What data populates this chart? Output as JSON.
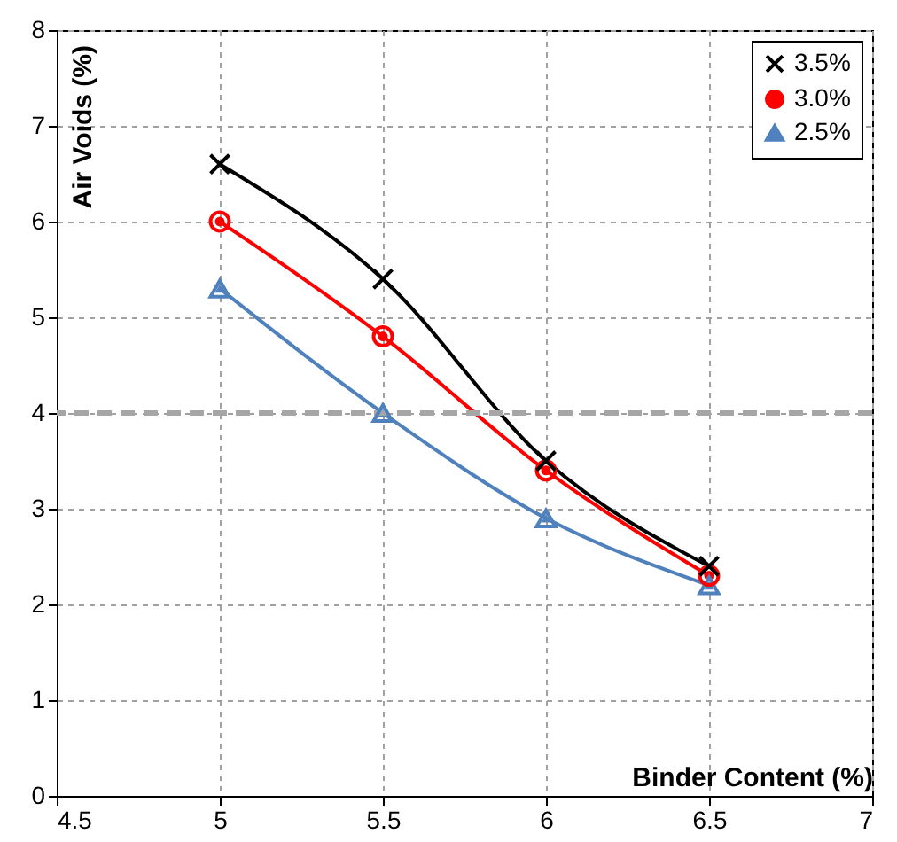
{
  "chart_data": {
    "type": "line",
    "xlabel": "Binder Content (%)",
    "ylabel": "Air Voids (%)",
    "x": [
      5,
      5.5,
      6,
      6.5
    ],
    "series": [
      {
        "name": "3.5%",
        "color": "#000000",
        "marker": "cross",
        "values": [
          6.6,
          5.4,
          3.5,
          2.4
        ]
      },
      {
        "name": "3.0%",
        "color": "#ff0000",
        "marker": "circle",
        "values": [
          6.0,
          4.8,
          3.4,
          2.3
        ]
      },
      {
        "name": "2.5%",
        "color": "#4f81bd",
        "marker": "triangle",
        "values": [
          5.3,
          4.0,
          2.9,
          2.2
        ]
      }
    ],
    "xlim": [
      4.5,
      7
    ],
    "xticks": [
      4.5,
      5,
      5.5,
      6,
      6.5,
      7
    ],
    "ylim": [
      0,
      8
    ],
    "yticks": [
      0,
      1,
      2,
      3,
      4,
      5,
      6,
      7,
      8
    ],
    "ref_lines": [
      {
        "axis": "y",
        "value": 4,
        "color": "#a6a6a6",
        "line_style": "dashed"
      }
    ],
    "grid": true,
    "legend": "top right",
    "line_style": "solid"
  }
}
